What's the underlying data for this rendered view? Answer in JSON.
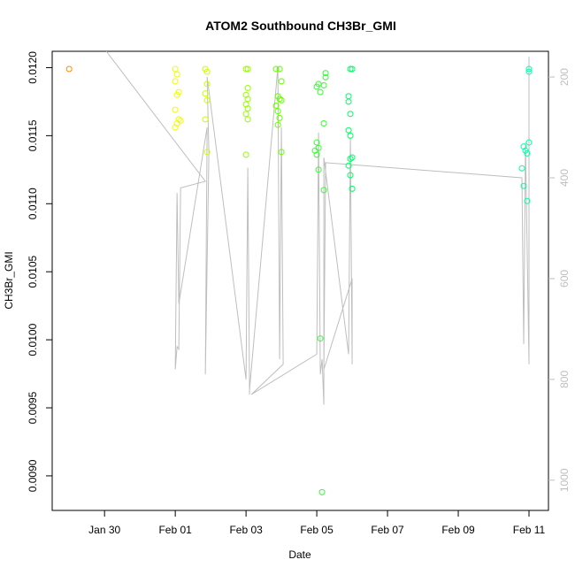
{
  "chart_data": {
    "type": "scatter",
    "title": "ATOM2 Southbound CH3Br_GMI",
    "xlabel": "Date",
    "ylabel": "CH3Br_GMI",
    "x": [
      29.0,
      32.0,
      32.05,
      32.0,
      32.1,
      32.05,
      32.0,
      32.1,
      32.05,
      32.15,
      32.0,
      32.85,
      32.9,
      32.9,
      32.85,
      32.9,
      32.85,
      32.9,
      34.0,
      34.05,
      34.05,
      34.0,
      34.05,
      34.0,
      34.05,
      34.0,
      34.05,
      34.0,
      34.85,
      34.95,
      35.0,
      34.9,
      34.95,
      35.0,
      34.85,
      34.9,
      34.95,
      34.9,
      35.0,
      36.0,
      36.05,
      36.1,
      36.25,
      36.25,
      36.2,
      36.2,
      36.0,
      36.05,
      36.0,
      35.95,
      36.05,
      36.2,
      36.1,
      36.15,
      36.95,
      37.0,
      36.9,
      36.9,
      36.95,
      36.9,
      36.95,
      37.0,
      36.95,
      36.9,
      36.95,
      37.0,
      42.0,
      42.0,
      41.85,
      41.9,
      41.95,
      42.0,
      41.8,
      41.85,
      41.95
    ],
    "values": [
      0.01199,
      0.01199,
      0.01195,
      0.0119,
      0.01182,
      0.0118,
      0.01169,
      0.01162,
      0.01159,
      0.01161,
      0.01156,
      0.01199,
      0.01197,
      0.01188,
      0.01181,
      0.01176,
      0.01162,
      0.01138,
      0.01199,
      0.01199,
      0.01185,
      0.0118,
      0.01177,
      0.01173,
      0.0117,
      0.01166,
      0.01162,
      0.01136,
      0.01199,
      0.01199,
      0.0119,
      0.01179,
      0.01177,
      0.01176,
      0.01172,
      0.01168,
      0.01163,
      0.01158,
      0.01138,
      0.01186,
      0.01188,
      0.01182,
      0.01196,
      0.01193,
      0.01187,
      0.01159,
      0.01145,
      0.01141,
      0.01136,
      0.01139,
      0.01125,
      0.0111,
      0.01001,
      0.00888,
      0.01199,
      0.01199,
      0.01179,
      0.01175,
      0.01166,
      0.01154,
      0.0115,
      0.01134,
      0.01133,
      0.01128,
      0.01121,
      0.01111,
      0.01199,
      0.01197,
      0.01142,
      0.01139,
      0.01137,
      0.01145,
      0.01126,
      0.01113,
      0.01102
    ],
    "colors": [
      "#ff8c00",
      "#eeff00",
      "#eeff00",
      "#eeff00",
      "#eeff00",
      "#eeff00",
      "#eeff00",
      "#eeff00",
      "#eeff00",
      "#eeff00",
      "#eeff00",
      "#ccff00",
      "#ccff00",
      "#ccff00",
      "#ccff00",
      "#ccff00",
      "#ccff00",
      "#ccff00",
      "#99ff00",
      "#99ff00",
      "#99ff00",
      "#99ff00",
      "#99ff00",
      "#99ff00",
      "#99ff00",
      "#99ff00",
      "#99ff00",
      "#99ff00",
      "#66ff00",
      "#66ff00",
      "#66ff00",
      "#66ff00",
      "#66ff00",
      "#66ff00",
      "#66ff00",
      "#66ff00",
      "#66ff00",
      "#66ff00",
      "#66ff00",
      "#33ff33",
      "#33ff33",
      "#33ff33",
      "#33ff33",
      "#33ff33",
      "#33ff33",
      "#33ff33",
      "#33ff33",
      "#33ff33",
      "#33ff33",
      "#33ff33",
      "#33ff33",
      "#33ff33",
      "#33ff33",
      "#33ff33",
      "#00ff66",
      "#00ff66",
      "#00ff66",
      "#00ff66",
      "#00ff66",
      "#00ff66",
      "#00ff66",
      "#00ff66",
      "#00ff66",
      "#00ff66",
      "#00ff66",
      "#00ff66",
      "#00ffaa",
      "#00ffaa",
      "#00ffaa",
      "#00ffaa",
      "#00ffaa",
      "#00ffaa",
      "#00ffaa",
      "#00ffaa",
      "#00ffaa"
    ],
    "line": {
      "type": "line",
      "axis": "y2",
      "color": "#bebebe",
      "x": [
        30.05,
        32.85,
        32.15,
        32.1,
        32.05,
        32.0,
        32.05,
        32.1,
        32.9,
        32.85,
        32.95,
        32.9,
        34.0,
        34.05,
        34.1,
        34.1,
        34.9,
        34.95,
        35.0,
        35.05,
        34.15,
        36.0,
        36.05,
        36.1,
        36.15,
        36.2,
        36.2,
        36.9,
        36.95,
        37.0,
        37.0,
        36.2,
        36.25,
        41.8,
        41.85,
        41.9,
        42.0,
        42.0
      ],
      "values": [
        149,
        407,
        420,
        740,
        735,
        780,
        430,
        650,
        300,
        790,
        350,
        200,
        800,
        380,
        830,
        820,
        180,
        760,
        300,
        770,
        830,
        750,
        310,
        790,
        760,
        850,
        360,
        750,
        320,
        770,
        600,
        780,
        370,
        400,
        730,
        330,
        770,
        160
      ]
    },
    "xlim": [
      28.52,
      42.55
    ],
    "xticks": [
      {
        "value": 30,
        "label": "Jan 30"
      },
      {
        "value": 32,
        "label": "Feb 01"
      },
      {
        "value": 34,
        "label": "Feb 03"
      },
      {
        "value": 36,
        "label": "Feb 05"
      },
      {
        "value": 38,
        "label": "Feb 07"
      },
      {
        "value": 40,
        "label": "Feb 09"
      },
      {
        "value": 42,
        "label": "Feb 11"
      }
    ],
    "ylim": [
      0.008746,
      0.01212
    ],
    "yticks": [
      {
        "value": 0.009,
        "label": "0.0090"
      },
      {
        "value": 0.0095,
        "label": "0.0095"
      },
      {
        "value": 0.01,
        "label": "0.0100"
      },
      {
        "value": 0.0105,
        "label": "0.0105"
      },
      {
        "value": 0.011,
        "label": "0.0110"
      },
      {
        "value": 0.0115,
        "label": "0.0115"
      },
      {
        "value": 0.012,
        "label": "0.0120"
      }
    ],
    "y2lim": [
      1060,
      149
    ],
    "y2ticks": [
      200,
      400,
      600,
      800,
      1000
    ],
    "y2tick_color": "#bebebe"
  }
}
